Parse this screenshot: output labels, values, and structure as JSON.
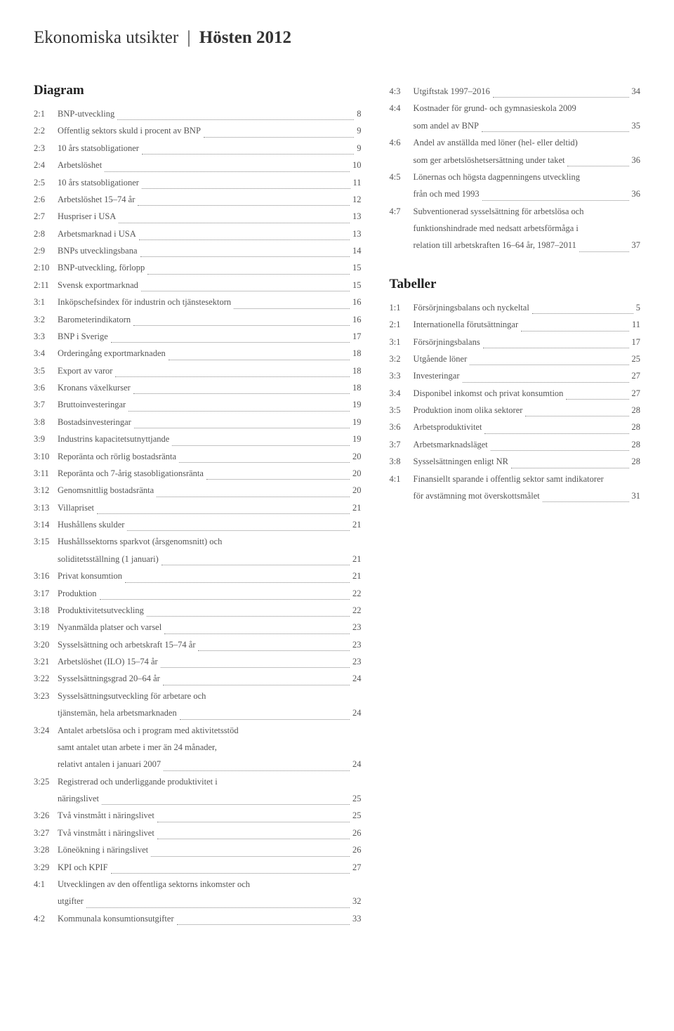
{
  "header": {
    "light": "Ekonomiska utsikter",
    "separator": "|",
    "bold": "Hösten 2012"
  },
  "diagram": {
    "title": "Diagram",
    "entries": [
      {
        "idx": "2:1",
        "label": "BNP-utveckling",
        "page": "8"
      },
      {
        "idx": "2:2",
        "label": "Offentlig sektors skuld i procent av BNP",
        "page": "9"
      },
      {
        "idx": "2:3",
        "label": "10 års statsobligationer",
        "page": "9"
      },
      {
        "idx": "2:4",
        "label": "Arbetslöshet",
        "page": "10"
      },
      {
        "idx": "2:5",
        "label": "10 års statsobligationer",
        "page": "11"
      },
      {
        "idx": "2:6",
        "label": "Arbetslöshet 15–74 år",
        "page": "12"
      },
      {
        "idx": "2:7",
        "label": "Huspriser i USA",
        "page": "13"
      },
      {
        "idx": "2:8",
        "label": "Arbetsmarknad i USA",
        "page": "13"
      },
      {
        "idx": "2:9",
        "label": "BNPs utvecklingsbana",
        "page": "14"
      },
      {
        "idx": "2:10",
        "label": "BNP-utveckling, förlopp",
        "page": "15"
      },
      {
        "idx": "2:11",
        "label": "Svensk exportmarknad",
        "page": "15"
      },
      {
        "idx": "3:1",
        "label": "Inköpschefsindex för industrin och tjänstesektorn",
        "page": "16"
      },
      {
        "idx": "3:2",
        "label": "Barometerindikatorn",
        "page": "16"
      },
      {
        "idx": "3:3",
        "label": "BNP i Sverige",
        "page": "17"
      },
      {
        "idx": "3:4",
        "label": "Orderingång exportmarknaden",
        "page": "18"
      },
      {
        "idx": "3:5",
        "label": "Export av varor",
        "page": "18"
      },
      {
        "idx": "3:6",
        "label": "Kronans växelkurser",
        "page": "18"
      },
      {
        "idx": "3:7",
        "label": "Bruttoinvesteringar",
        "page": "19"
      },
      {
        "idx": "3:8",
        "label": "Bostadsinvesteringar",
        "page": "19"
      },
      {
        "idx": "3:9",
        "label": "Industrins kapacitetsutnyttjande",
        "page": "19"
      },
      {
        "idx": "3:10",
        "label": "Reporänta och rörlig bostadsränta",
        "page": "20"
      },
      {
        "idx": "3:11",
        "label": "Reporänta och 7-årig stasobligationsränta",
        "page": "20"
      },
      {
        "idx": "3:12",
        "label": "Genomsnittlig bostadsränta",
        "page": "20"
      },
      {
        "idx": "3:13",
        "label": "Villapriset",
        "page": "21"
      },
      {
        "idx": "3:14",
        "label": "Hushållens skulder",
        "page": "21"
      },
      {
        "idx": "3:15",
        "multiline": true,
        "lines": [
          "Hushållssektorns sparkvot (årsgenomsnitt) och",
          "soliditetsställning (1 januari)"
        ],
        "page": "21"
      },
      {
        "idx": "3:16",
        "label": "Privat konsumtion",
        "page": "21"
      },
      {
        "idx": "3:17",
        "label": "Produktion",
        "page": "22"
      },
      {
        "idx": "3:18",
        "label": "Produktivitetsutveckling",
        "page": "22"
      },
      {
        "idx": "3:19",
        "label": "Nyanmälda platser och varsel",
        "page": "23"
      },
      {
        "idx": "3:20",
        "label": "Sysselsättning och arbetskraft 15–74 år",
        "page": "23"
      },
      {
        "idx": "3:21",
        "label": "Arbetslöshet (ILO) 15–74 år",
        "page": "23"
      },
      {
        "idx": "3:22",
        "label": "Sysselsättningsgrad 20–64 år",
        "page": "24"
      },
      {
        "idx": "3:23",
        "multiline": true,
        "lines": [
          "Sysselsättningsutveckling för arbetare och",
          "tjänstemän, hela arbetsmarknaden"
        ],
        "page": "24"
      },
      {
        "idx": "3:24",
        "multiline": true,
        "lines": [
          "Antalet arbetslösa och i program med aktivitetsstöd",
          "samt antalet utan arbete i mer än 24 månader,",
          "relativt antalen i januari 2007"
        ],
        "page": "24"
      },
      {
        "idx": "3:25",
        "multiline": true,
        "lines": [
          "Registrerad och underliggande produktivitet i",
          "näringslivet"
        ],
        "page": "25"
      },
      {
        "idx": "3:26",
        "label": "Två vinstmått i näringslivet",
        "page": "25"
      },
      {
        "idx": "3:27",
        "label": "Två vinstmått i näringslivet",
        "page": "26"
      },
      {
        "idx": "3:28",
        "label": "Löneökning i näringslivet",
        "page": "26"
      },
      {
        "idx": "3:29",
        "label": "KPI och KPIF",
        "page": "27"
      },
      {
        "idx": "4:1",
        "multiline": true,
        "lines": [
          "Utvecklingen av den offentliga sektorns inkomster och",
          "utgifter"
        ],
        "page": "32"
      },
      {
        "idx": "4:2",
        "label": "Kommunala konsumtionsutgifter",
        "page": "33"
      }
    ]
  },
  "diagram_right": {
    "entries": [
      {
        "idx": "4:3",
        "label": "Utgiftstak 1997–2016",
        "page": "34"
      },
      {
        "idx": "4:4",
        "multiline": true,
        "lines": [
          "Kostnader för grund- och gymnasieskola 2009",
          "som andel av BNP"
        ],
        "page": "35"
      },
      {
        "idx": "4:6",
        "multiline": true,
        "lines": [
          "Andel av anställda med löner (hel- eller deltid)",
          "som ger arbetslöshetsersättning under taket"
        ],
        "page": "36"
      },
      {
        "idx": "4:5",
        "multiline": true,
        "lines": [
          "Lönernas och högsta dagpenningens utveckling",
          "från och med 1993"
        ],
        "page": "36"
      },
      {
        "idx": "4:7",
        "multiline": true,
        "lines": [
          "Subventionerad sysselsättning för arbetslösa och",
          "funktionshindrade med nedsatt arbetsförmåga i",
          "relation till arbetskraften 16–64 år, 1987–2011"
        ],
        "page": "37"
      }
    ]
  },
  "tabeller": {
    "title": "Tabeller",
    "entries": [
      {
        "idx": "1:1",
        "label": "Försörjningsbalans och nyckeltal",
        "page": "5"
      },
      {
        "idx": "2:1",
        "label": "Internationella förutsättningar",
        "page": "11"
      },
      {
        "idx": "3:1",
        "label": "Försörjningsbalans",
        "page": "17"
      },
      {
        "idx": "3:2",
        "label": "Utgående löner",
        "page": "25"
      },
      {
        "idx": "3:3",
        "label": "Investeringar",
        "page": "27"
      },
      {
        "idx": "3:4",
        "label": "Disponibel inkomst och privat konsumtion",
        "page": "27"
      },
      {
        "idx": "3:5",
        "label": "Produktion inom olika sektorer",
        "page": "28"
      },
      {
        "idx": "3:6",
        "label": "Arbetsproduktivitet",
        "page": "28"
      },
      {
        "idx": "3:7",
        "label": "Arbetsmarknadsläget",
        "page": "28"
      },
      {
        "idx": "3:8",
        "label": "Sysselsättningen enligt NR",
        "page": "28"
      },
      {
        "idx": "4:1",
        "multiline": true,
        "lines": [
          "Finansiellt sparande i offentlig sektor samt indikatorer",
          "för avstämning mot överskottsmålet"
        ],
        "page": "31"
      }
    ]
  },
  "style": {
    "body_bg": "#ffffff",
    "text_color": "#333333",
    "entry_color": "#555555",
    "leader_color": "#888888",
    "header_fontsize_pt": 19,
    "section_title_fontsize_pt": 14,
    "entry_fontsize_pt": 9.5
  }
}
